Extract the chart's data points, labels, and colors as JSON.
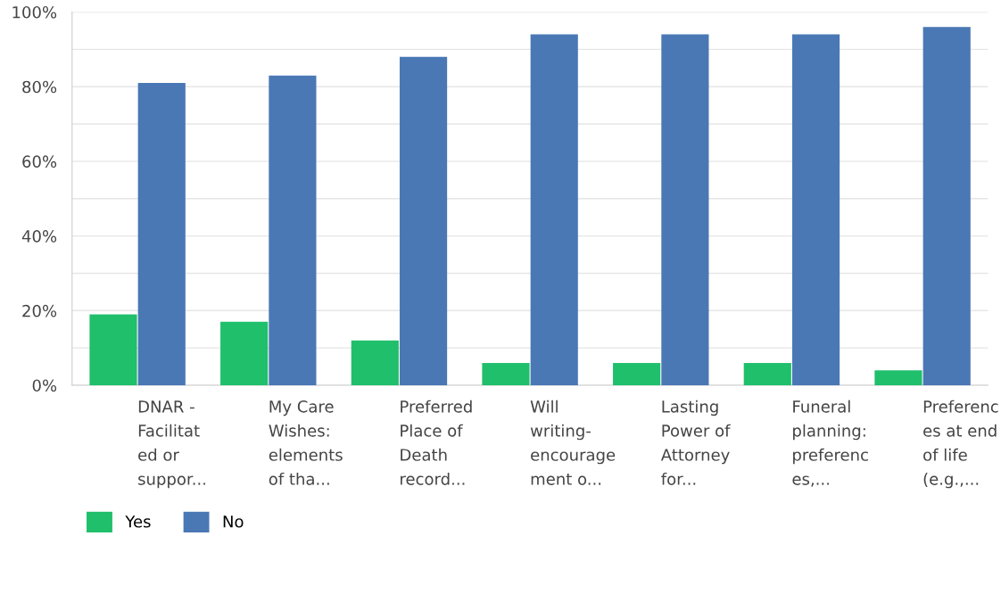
{
  "chart_data": {
    "type": "bar",
    "categories": [
      "DNAR -\nFacilitat\ned or\nsuppor...",
      "My Care\nWishes:\nelements\nof tha...",
      "Preferred\nPlace of\nDeath\nrecord...",
      "Will\nwriting-\nencourage\nment o...",
      "Lasting\nPower of\nAttorney\nfor...",
      "Funeral\nplanning:\npreferenc\nes,...",
      "Preferenc\nes at end\nof life\n(e.g.,..."
    ],
    "series": [
      {
        "name": "Yes",
        "color": "#20bf6b",
        "values": [
          19,
          17,
          12,
          6,
          6,
          6,
          4
        ]
      },
      {
        "name": "No",
        "color": "#4a78b5",
        "values": [
          81,
          83,
          88,
          94,
          94,
          94,
          96
        ]
      }
    ],
    "ylim": [
      0,
      100
    ],
    "yticks": [
      {
        "value": 0,
        "label": "0%"
      },
      {
        "value": 10,
        "label": null
      },
      {
        "value": 20,
        "label": "20%"
      },
      {
        "value": 30,
        "label": null
      },
      {
        "value": 40,
        "label": "40%"
      },
      {
        "value": 50,
        "label": null
      },
      {
        "value": 60,
        "label": "60%"
      },
      {
        "value": 70,
        "label": null
      },
      {
        "value": 80,
        "label": "80%"
      },
      {
        "value": 90,
        "label": null
      },
      {
        "value": 100,
        "label": "100%"
      }
    ],
    "grid": "y",
    "legend": "bottom left"
  }
}
